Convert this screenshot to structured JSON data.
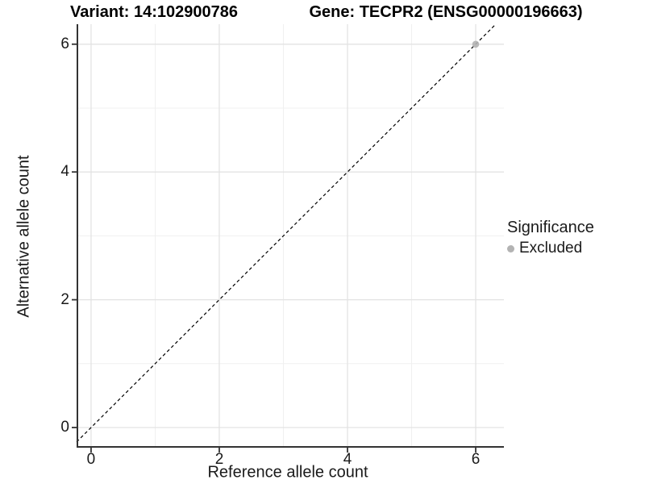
{
  "figure": {
    "titles": {
      "variant": "Variant: 14:102900786",
      "gene": "Gene: TECPR2 (ENSG00000196663)"
    },
    "x_axis": {
      "label": "Reference allele count"
    },
    "y_axis": {
      "label": "Alternative allele count"
    },
    "legend": {
      "title": "Significance",
      "items": [
        {
          "label": "Excluded",
          "color": "#b3b3b3"
        }
      ]
    }
  },
  "chart_data": {
    "type": "scatter",
    "title": "Variant: 14:102900786   Gene: TECPR2 (ENSG00000196663)",
    "xlabel": "Reference allele count",
    "ylabel": "Alternative allele count",
    "xlim": [
      -0.226,
      6.44
    ],
    "ylim": [
      -0.316,
      6.313
    ],
    "x_ticks": [
      0,
      2,
      4,
      6
    ],
    "y_ticks": [
      0,
      2,
      4,
      6
    ],
    "x_minor_ticks": [
      1,
      3,
      5
    ],
    "y_minor_ticks": [
      1,
      3,
      5
    ],
    "grid": true,
    "legend_position": "right",
    "series": [
      {
        "name": "Excluded",
        "color": "#b3b3b3",
        "points": [
          {
            "x": 6,
            "y": 6
          }
        ]
      }
    ],
    "reference_line": {
      "type": "identity",
      "equation": "y = x",
      "style": "dashed",
      "color": "#000000"
    },
    "style": {
      "panel_background": "#ffffff",
      "major_grid_color": "#e3e3e3",
      "minor_grid_color": "#f0f0f0",
      "axis_line_color": "#333333",
      "text_color": "#1a1a1a"
    }
  }
}
